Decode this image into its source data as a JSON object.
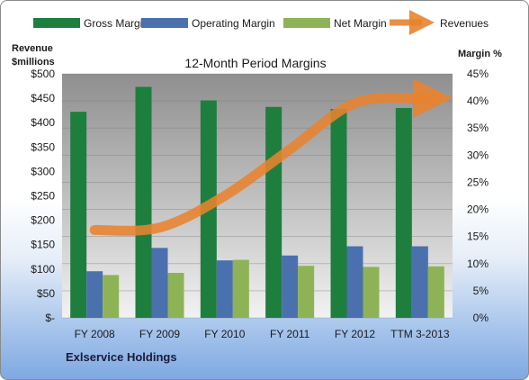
{
  "chart_data": {
    "type": "bar",
    "title": "12-Month Period Margins",
    "company": "Exlservice Holdings",
    "y_left_label": [
      "Revenue",
      "$millions"
    ],
    "y_right_label": "Margin %",
    "categories": [
      "FY 2008",
      "FY 2009",
      "FY 2010",
      "FY 2011",
      "FY 2012",
      "TTM 3-2013"
    ],
    "y_left_ticks": [
      "$-",
      "$50",
      "$100",
      "$150",
      "$200",
      "$250",
      "$300",
      "$350",
      "$400",
      "$450",
      "$500"
    ],
    "y_right_ticks": [
      "0%",
      "5%",
      "10%",
      "15%",
      "20%",
      "25%",
      "30%",
      "35%",
      "40%",
      "45%"
    ],
    "ylim_right": [
      0,
      45
    ],
    "ylim_left": [
      0,
      500
    ],
    "series": [
      {
        "name": "Gross Margin",
        "axis": "right",
        "color": "#1e7e3e",
        "values": [
          38.0,
          42.6,
          40.1,
          38.9,
          38.5,
          38.7
        ]
      },
      {
        "name": "Operating Margin",
        "axis": "right",
        "color": "#4a71ad",
        "values": [
          8.6,
          12.9,
          10.6,
          11.5,
          13.2,
          13.2
        ]
      },
      {
        "name": "Net Margin",
        "axis": "right",
        "color": "#8eb356",
        "values": [
          7.9,
          8.3,
          10.7,
          9.6,
          9.4,
          9.5
        ]
      },
      {
        "name": "Revenues",
        "axis": "left",
        "color": "#e8832f",
        "type": "line",
        "values": [
          180,
          185,
          250,
          345,
          440,
          450
        ]
      }
    ],
    "grid": true,
    "legend": "top"
  }
}
